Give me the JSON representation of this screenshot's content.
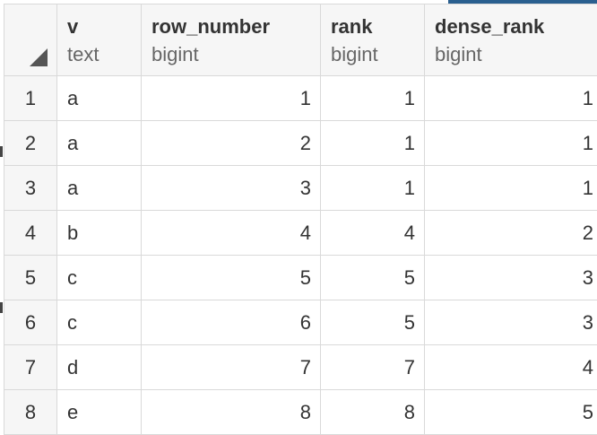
{
  "columns": [
    {
      "name": "",
      "type": ""
    },
    {
      "name": "v",
      "type": "text"
    },
    {
      "name": "row_number",
      "type": "bigint"
    },
    {
      "name": "rank",
      "type": "bigint"
    },
    {
      "name": "dense_rank",
      "type": "bigint"
    }
  ],
  "rows": [
    {
      "n": "1",
      "v": "a",
      "row_number": "1",
      "rank": "1",
      "dense_rank": "1"
    },
    {
      "n": "2",
      "v": "a",
      "row_number": "2",
      "rank": "1",
      "dense_rank": "1"
    },
    {
      "n": "3",
      "v": "a",
      "row_number": "3",
      "rank": "1",
      "dense_rank": "1"
    },
    {
      "n": "4",
      "v": "b",
      "row_number": "4",
      "rank": "4",
      "dense_rank": "2"
    },
    {
      "n": "5",
      "v": "c",
      "row_number": "5",
      "rank": "5",
      "dense_rank": "3"
    },
    {
      "n": "6",
      "v": "c",
      "row_number": "6",
      "rank": "5",
      "dense_rank": "3"
    },
    {
      "n": "7",
      "v": "d",
      "row_number": "7",
      "rank": "7",
      "dense_rank": "4"
    },
    {
      "n": "8",
      "v": "e",
      "row_number": "8",
      "rank": "8",
      "dense_rank": "5"
    }
  ]
}
